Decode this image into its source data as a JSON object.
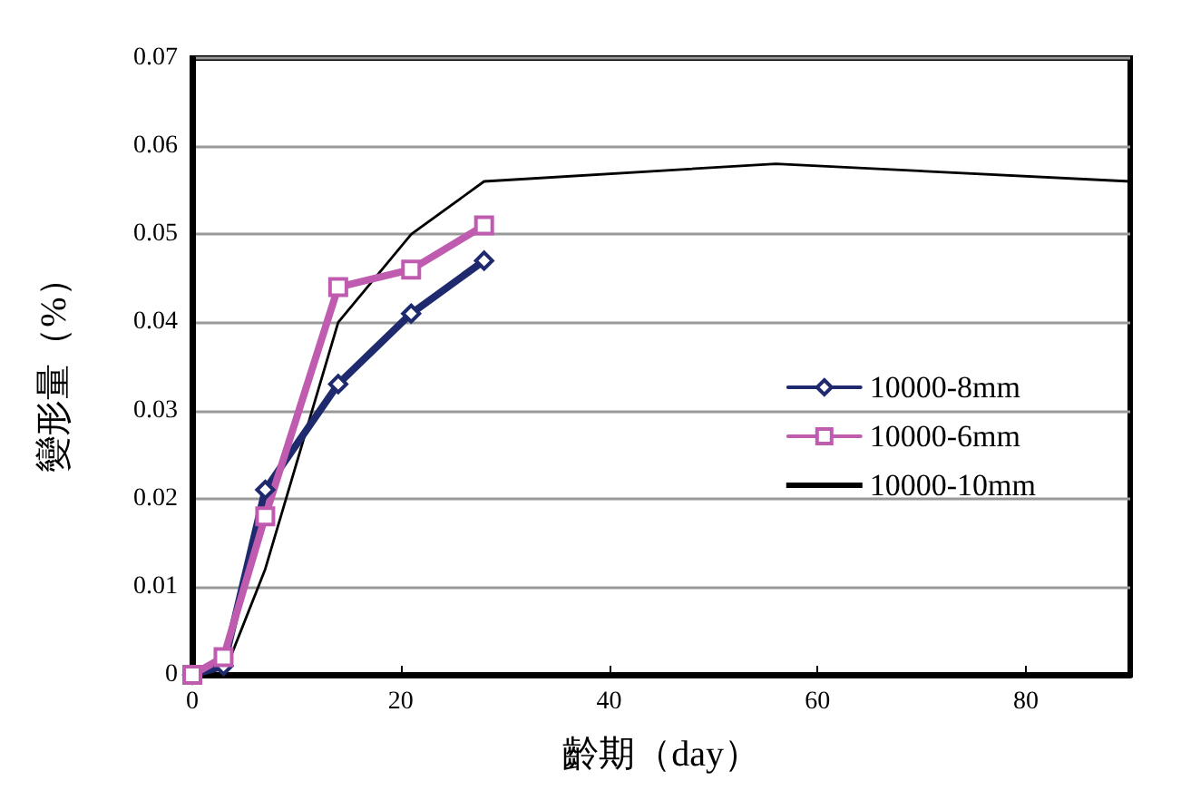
{
  "chart_data": {
    "type": "line",
    "xlabel": "齡期（day）",
    "ylabel": "變形量（%）",
    "xlim": [
      0,
      90
    ],
    "xticks": [
      0,
      20,
      40,
      60,
      80
    ],
    "ylim": [
      0,
      0.07
    ],
    "yticks": [
      0,
      0.01,
      0.02,
      0.03,
      0.04,
      0.05,
      0.06,
      0.07
    ],
    "grid": "y",
    "legend": "right",
    "series": [
      {
        "name": "10000-8mm",
        "color": "#1f2a6e",
        "marker": "diamond",
        "x": [
          0,
          3,
          7,
          14,
          21,
          28
        ],
        "values": [
          0,
          0.001,
          0.021,
          0.033,
          0.041,
          0.047
        ]
      },
      {
        "name": "10000-6mm",
        "color": "#c05cb0",
        "marker": "square",
        "x": [
          0,
          3,
          7,
          14,
          21,
          28
        ],
        "values": [
          0,
          0.002,
          0.018,
          0.044,
          0.046,
          0.051
        ]
      },
      {
        "name": "10000-10mm",
        "color": "#000000",
        "marker": "none",
        "x": [
          0,
          3,
          7,
          14,
          21,
          28,
          56,
          90
        ],
        "values": [
          0,
          0,
          0.012,
          0.04,
          0.05,
          0.056,
          0.058,
          0.056
        ]
      }
    ]
  }
}
